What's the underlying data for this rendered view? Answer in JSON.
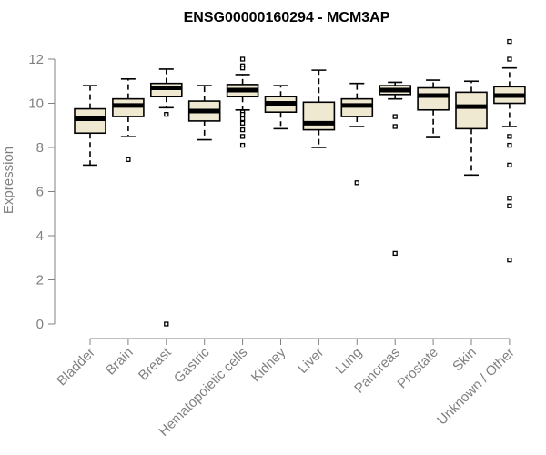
{
  "chart_data": {
    "type": "boxplot",
    "title": "ENSG00000160294 - MCM3AP",
    "xlabel": "",
    "ylabel": "Expression",
    "ylim": [
      0,
      12.5
    ],
    "yticks": [
      0,
      2,
      4,
      6,
      8,
      10,
      12
    ],
    "box_fill": "#f0e9d2",
    "box_stroke": "#000000",
    "median_color": "#000000",
    "axis_color": "#808080",
    "grid": false,
    "categories": [
      "Bladder",
      "Brain",
      "Breast",
      "Gastric",
      "Hematopoietic cells",
      "Kidney",
      "Liver",
      "Lung",
      "Pancreas",
      "Prostate",
      "Skin",
      "Unknown / Other"
    ],
    "series": [
      {
        "category": "Bladder",
        "whisker_low": 7.2,
        "q1": 8.65,
        "median": 9.3,
        "q3": 9.75,
        "whisker_high": 10.8,
        "outliers": []
      },
      {
        "category": "Brain",
        "whisker_low": 8.5,
        "q1": 9.4,
        "median": 9.9,
        "q3": 10.2,
        "whisker_high": 11.1,
        "outliers": [
          7.45
        ]
      },
      {
        "category": "Breast",
        "whisker_low": 9.8,
        "q1": 10.3,
        "median": 10.7,
        "q3": 10.9,
        "whisker_high": 11.55,
        "outliers": [
          9.5,
          0.0
        ]
      },
      {
        "category": "Gastric",
        "whisker_low": 8.35,
        "q1": 9.2,
        "median": 9.65,
        "q3": 10.1,
        "whisker_high": 10.8,
        "outliers": []
      },
      {
        "category": "Hematopoietic cells",
        "whisker_low": 9.7,
        "q1": 10.3,
        "median": 10.6,
        "q3": 10.85,
        "whisker_high": 11.3,
        "outliers": [
          12.0,
          11.7,
          11.6,
          9.6,
          9.5,
          9.3,
          9.1,
          8.8,
          8.5,
          8.1
        ]
      },
      {
        "category": "Kidney",
        "whisker_low": 8.85,
        "q1": 9.6,
        "median": 10.0,
        "q3": 10.3,
        "whisker_high": 10.8,
        "outliers": []
      },
      {
        "category": "Liver",
        "whisker_low": 8.0,
        "q1": 8.8,
        "median": 9.1,
        "q3": 10.05,
        "whisker_high": 11.5,
        "outliers": []
      },
      {
        "category": "Lung",
        "whisker_low": 8.95,
        "q1": 9.4,
        "median": 9.9,
        "q3": 10.2,
        "whisker_high": 10.9,
        "outliers": [
          6.4
        ]
      },
      {
        "category": "Pancreas",
        "whisker_low": 10.2,
        "q1": 10.4,
        "median": 10.6,
        "q3": 10.8,
        "whisker_high": 10.95,
        "outliers": [
          9.4,
          8.95,
          3.2
        ]
      },
      {
        "category": "Prostate",
        "whisker_low": 8.45,
        "q1": 9.7,
        "median": 10.35,
        "q3": 10.7,
        "whisker_high": 11.05,
        "outliers": []
      },
      {
        "category": "Skin",
        "whisker_low": 6.75,
        "q1": 8.85,
        "median": 9.85,
        "q3": 10.5,
        "whisker_high": 11.0,
        "outliers": []
      },
      {
        "category": "Unknown / Other",
        "whisker_low": 8.95,
        "q1": 10.0,
        "median": 10.35,
        "q3": 10.75,
        "whisker_high": 11.6,
        "outliers": [
          12.8,
          12.0,
          8.5,
          8.1,
          7.2,
          5.7,
          5.35,
          2.9
        ]
      }
    ]
  }
}
